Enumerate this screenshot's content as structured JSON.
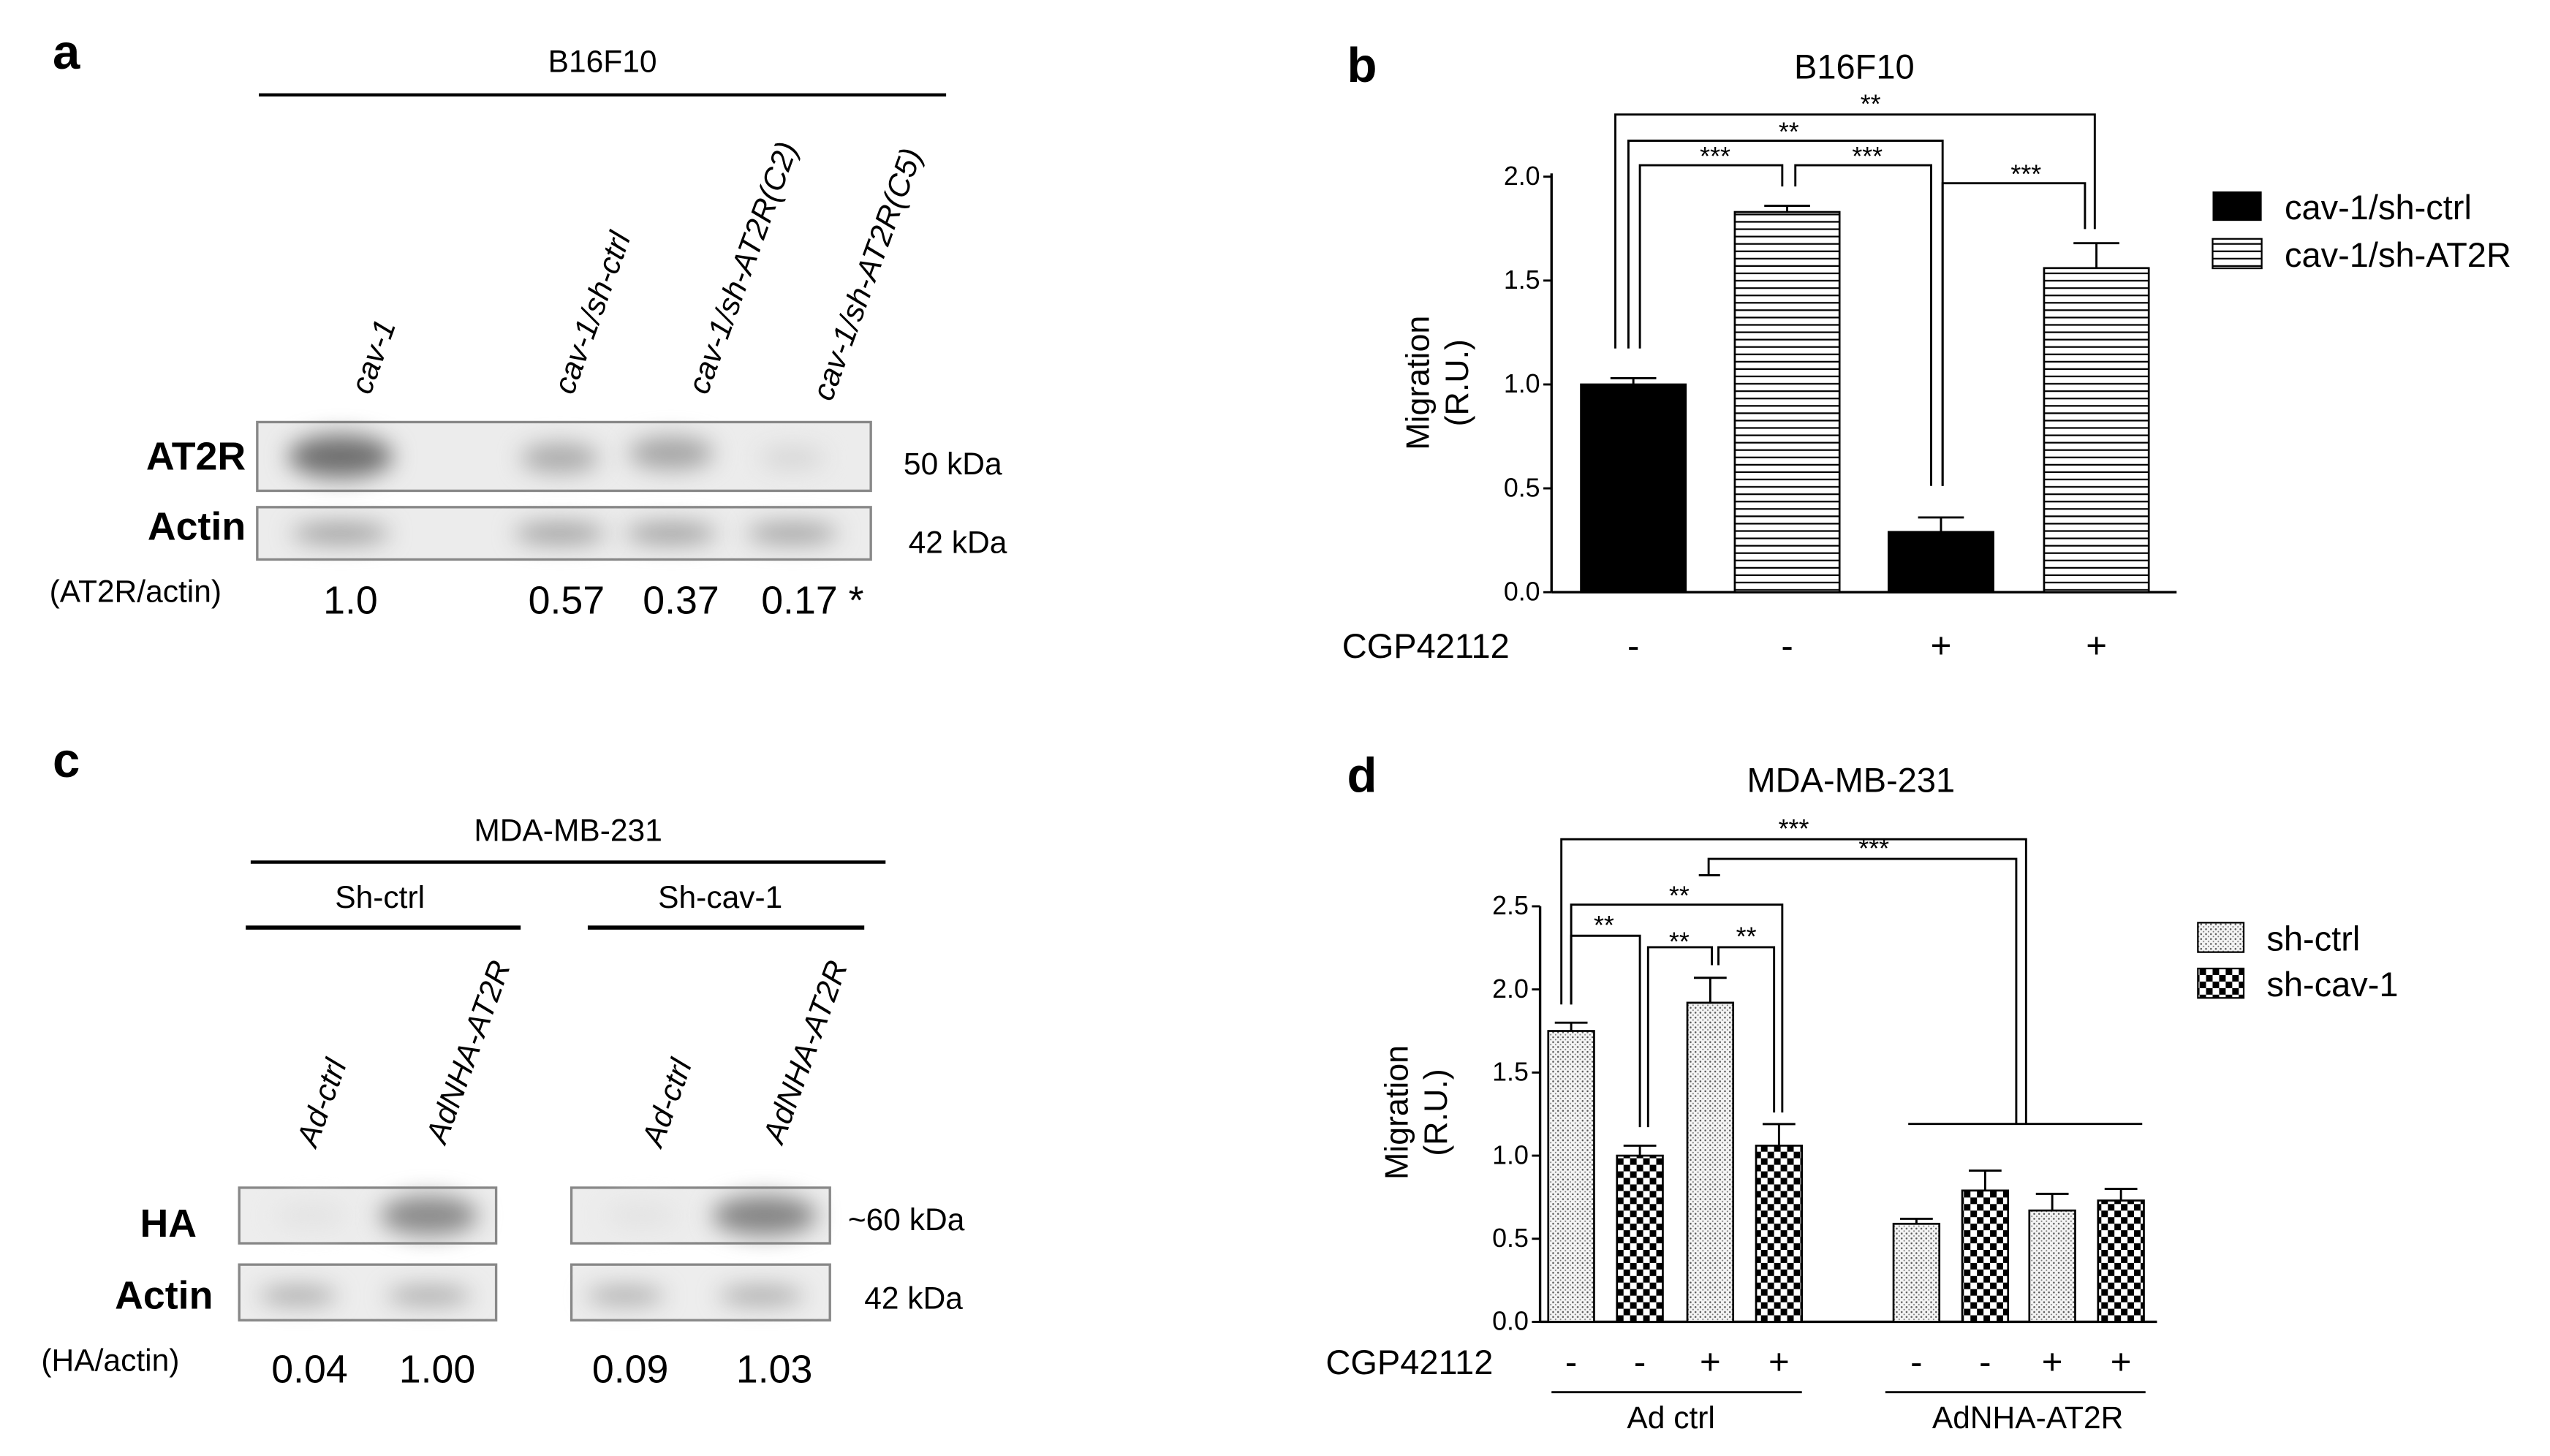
{
  "panels": {
    "a": {
      "letter": "a",
      "cell_line": "B16F10",
      "lanes": [
        "cav-1",
        "cav-1/sh-ctrl",
        "cav-1/sh-AT2R(C2)",
        "cav-1/sh-AT2R(C5)"
      ],
      "row_labels": [
        "AT2R",
        "Actin"
      ],
      "weights": [
        "50 kDa",
        "42 kDa"
      ],
      "ratio_label": "(AT2R/actin)",
      "ratios": [
        "1.0",
        "0.57",
        "0.37",
        "0.17 *"
      ]
    },
    "c": {
      "letter": "c",
      "cell_line": "MDA-MB-231",
      "groups": [
        "Sh-ctrl",
        "Sh-cav-1"
      ],
      "lanes": [
        "Ad-ctrl",
        "AdNHA-AT2R",
        "Ad-ctrl",
        "AdNHA-AT2R"
      ],
      "row_labels": [
        "HA",
        "Actin"
      ],
      "weights": [
        "~60 kDa",
        "42 kDa"
      ],
      "ratio_label": "(HA/actin)",
      "ratios": [
        "0.04",
        "1.00",
        "0.09",
        "1.03"
      ]
    }
  },
  "chart_data": [
    {
      "letter": "b",
      "type": "bar",
      "title": "B16F10",
      "ylabel": "Migration (R.U.)",
      "ylabel_lines": [
        "Migration",
        "(R.U.)"
      ],
      "ylim": [
        0,
        2.0
      ],
      "yticks": [
        "0.0",
        "0.5",
        "1.0",
        "1.5",
        "2.0"
      ],
      "treatment_label": "CGP42112",
      "treatment": [
        "-",
        "-",
        "+",
        "+"
      ],
      "bars": [
        {
          "series": "cav-1/sh-ctrl",
          "value": 1.0,
          "error": 0.03
        },
        {
          "series": "cav-1/sh-AT2R",
          "value": 1.83,
          "error": 0.03
        },
        {
          "series": "cav-1/sh-ctrl",
          "value": 0.29,
          "error": 0.07
        },
        {
          "series": "cav-1/sh-AT2R",
          "value": 1.56,
          "error": 0.12
        }
      ],
      "legend": [
        {
          "name": "cav-1/sh-ctrl",
          "pattern": "solid"
        },
        {
          "name": "cav-1/sh-AT2R",
          "pattern": "hlines"
        }
      ],
      "significance": [
        "**",
        "**",
        "***",
        "***",
        "***"
      ]
    },
    {
      "letter": "d",
      "type": "bar",
      "title": "MDA-MB-231",
      "ylabel": "Migration (R.U.)",
      "ylabel_lines": [
        "Migration",
        "(R.U.)"
      ],
      "ylim": [
        0,
        2.5
      ],
      "yticks": [
        "0.0",
        "0.5",
        "1.0",
        "1.5",
        "2.0",
        "2.5"
      ],
      "treatment_label": "CGP42112",
      "treatment": [
        "-",
        "-",
        "+",
        "+",
        "-",
        "-",
        "+",
        "+"
      ],
      "groups": [
        "Ad ctrl",
        "AdNHA-AT2R"
      ],
      "bars": [
        {
          "series": "sh-ctrl",
          "value": 1.75,
          "error": 0.05
        },
        {
          "series": "sh-cav-1",
          "value": 1.0,
          "error": 0.06
        },
        {
          "series": "sh-ctrl",
          "value": 1.92,
          "error": 0.15
        },
        {
          "series": "sh-cav-1",
          "value": 1.06,
          "error": 0.13
        },
        {
          "series": "sh-ctrl",
          "value": 0.59,
          "error": 0.03
        },
        {
          "series": "sh-cav-1",
          "value": 0.79,
          "error": 0.12
        },
        {
          "series": "sh-ctrl",
          "value": 0.67,
          "error": 0.1
        },
        {
          "series": "sh-cav-1",
          "value": 0.73,
          "error": 0.07
        }
      ],
      "legend": [
        {
          "name": "sh-ctrl",
          "pattern": "dots"
        },
        {
          "name": "sh-cav-1",
          "pattern": "checker"
        }
      ],
      "significance": [
        "***",
        "***",
        "**",
        "**",
        "**",
        "**"
      ]
    }
  ]
}
